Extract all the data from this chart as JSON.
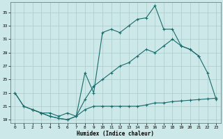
{
  "xlabel": "Humidex (Indice chaleur)",
  "bg_color": "#cce8e8",
  "grid_color": "#aacccc",
  "line_color": "#1a6b6b",
  "xlim": [
    -0.5,
    23.5
  ],
  "ylim": [
    18.5,
    36.5
  ],
  "xticks": [
    0,
    1,
    2,
    3,
    4,
    5,
    6,
    7,
    8,
    9,
    10,
    11,
    12,
    13,
    14,
    15,
    16,
    17,
    18,
    19,
    20,
    21,
    22,
    23
  ],
  "yticks": [
    19,
    21,
    23,
    25,
    27,
    29,
    31,
    33,
    35
  ],
  "line1_x": [
    0,
    1,
    2,
    3,
    4,
    5,
    6,
    7,
    8,
    9,
    10,
    11,
    12,
    13,
    14,
    15,
    16,
    17,
    18,
    19,
    20,
    21
  ],
  "line1_y": [
    23,
    21,
    20.5,
    20,
    19.5,
    19.2,
    19,
    19.5,
    26,
    23,
    32,
    32.5,
    32,
    33,
    34,
    34.2,
    36,
    32.5,
    32.5,
    30,
    29.5,
    28.5
  ],
  "line2_x": [
    0,
    1,
    2,
    3,
    4,
    5,
    6,
    7,
    8,
    9,
    10,
    11,
    12,
    13,
    14,
    15,
    16,
    17,
    18,
    19,
    20,
    21,
    22,
    23
  ],
  "line2_y": [
    23,
    21,
    20.5,
    20,
    19.5,
    19.2,
    19,
    19.5,
    22,
    24,
    25,
    26,
    27,
    27.5,
    28.5,
    29.5,
    29,
    30,
    31,
    30,
    29.5,
    28.5,
    26,
    22
  ],
  "line3_x": [
    2,
    3,
    4,
    5,
    6,
    7,
    8,
    9,
    10,
    11,
    12,
    13,
    14,
    15,
    16,
    17,
    18,
    19,
    20,
    21,
    22,
    23
  ],
  "line3_y": [
    20.5,
    20,
    20,
    19.5,
    20,
    19.5,
    20.5,
    21,
    21,
    21,
    21,
    21,
    21,
    21.2,
    21.5,
    21.5,
    21.7,
    21.8,
    21.9,
    22,
    22.1,
    22.2
  ]
}
